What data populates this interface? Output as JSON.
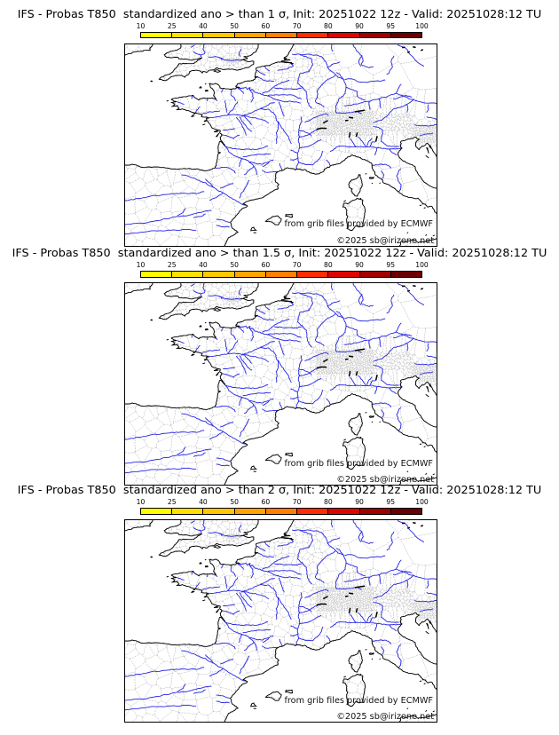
{
  "page": {
    "background": "#ffffff"
  },
  "panels": [
    {
      "title": "IFS - Probas T850  standardized ano > than 1 σ, Init: 20251022 12z - Valid: 20251028:12 TU"
    },
    {
      "title": "IFS - Probas T850  standardized ano > than 1.5 σ, Init: 20251022 12z - Valid: 20251028:12 TU"
    },
    {
      "title": "IFS - Probas T850  standardized ano > than 2 σ, Init: 20251022 12z - Valid: 20251028:12 TU"
    }
  ],
  "colorbar": {
    "labels": [
      "10",
      "25",
      "40",
      "50",
      "60",
      "70",
      "80",
      "90",
      "95",
      "100"
    ],
    "colors": [
      "#ffff00",
      "#ffe100",
      "#ffc800",
      "#ffa500",
      "#ff8000",
      "#ff2d00",
      "#dc0500",
      "#a00000",
      "#6b0000"
    ],
    "border_color": "#000000"
  },
  "map": {
    "credit_line1": "from grib files provided by ECMWF",
    "credit_line2": "©2025 sb@irizone.net",
    "coast_color": "#000000",
    "lake_color": "#000000",
    "river_color": "#2424e2",
    "admin_color": "#b0b0b0"
  },
  "chart_data": {
    "type": "map",
    "title_series": [
      "standardized ano > than 1 σ",
      "standardized ano > than 1.5 σ",
      "standardized ano > than 2 σ"
    ],
    "model": "IFS",
    "parameter": "Probas T850",
    "init": "20251022 12z",
    "valid": "20251028:12 TU",
    "colorbar_values": [
      10,
      25,
      40,
      50,
      60,
      70,
      80,
      90,
      95,
      100
    ],
    "region": "France / Western Europe",
    "probability_shading": "none visible (all maps below lowest contour)"
  }
}
